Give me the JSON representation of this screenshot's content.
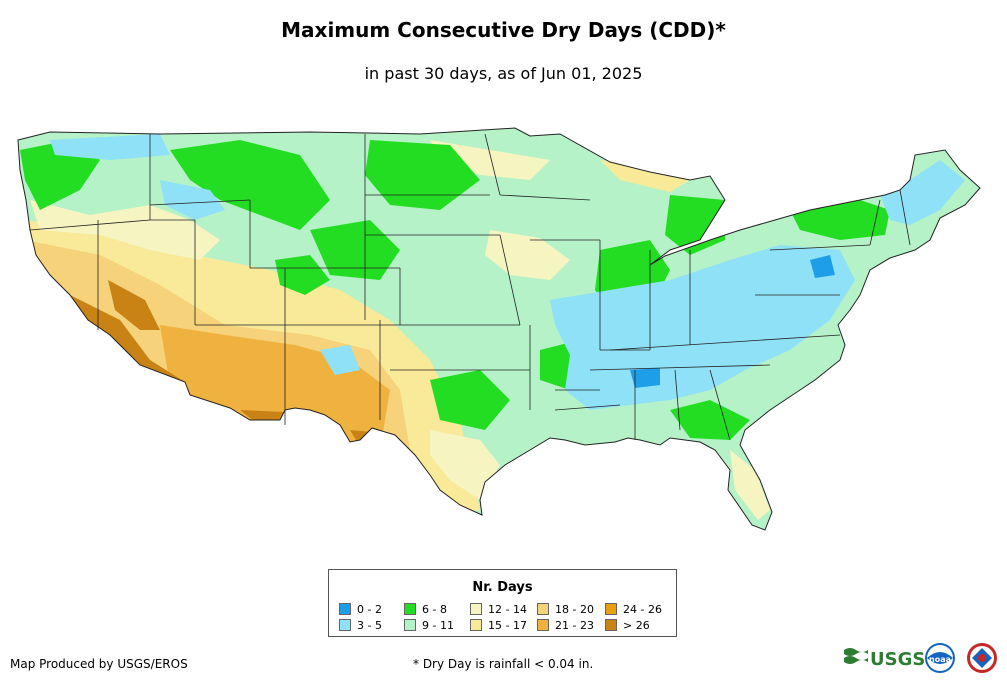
{
  "title": "Maximum Consecutive Dry Days (CDD)*",
  "subtitle": "in past 30 days, as of Jun 01, 2025",
  "legend": {
    "title": "Nr. Days",
    "items": [
      {
        "label": "0 - 2",
        "color": "#1f9ee8"
      },
      {
        "label": "3 - 5",
        "color": "#8ee1f7"
      },
      {
        "label": "6 - 8",
        "color": "#22dd22"
      },
      {
        "label": "9 - 11",
        "color": "#b5f2c7"
      },
      {
        "label": "12 - 14",
        "color": "#f6f4c1"
      },
      {
        "label": "15 - 17",
        "color": "#f8ea98"
      },
      {
        "label": "18 - 20",
        "color": "#f6d27a"
      },
      {
        "label": "21 - 23",
        "color": "#efb23e"
      },
      {
        "label": "24 - 26",
        "color": "#e89f12"
      },
      {
        "label": "> 26",
        "color": "#c98315"
      }
    ]
  },
  "footer": {
    "credit": "Map Produced by USGS/EROS",
    "footnote": "* Dry Day is rainfall < 0.04 in."
  },
  "logos": {
    "usgs_text": "USGS",
    "noaa_text": "noaa"
  }
}
